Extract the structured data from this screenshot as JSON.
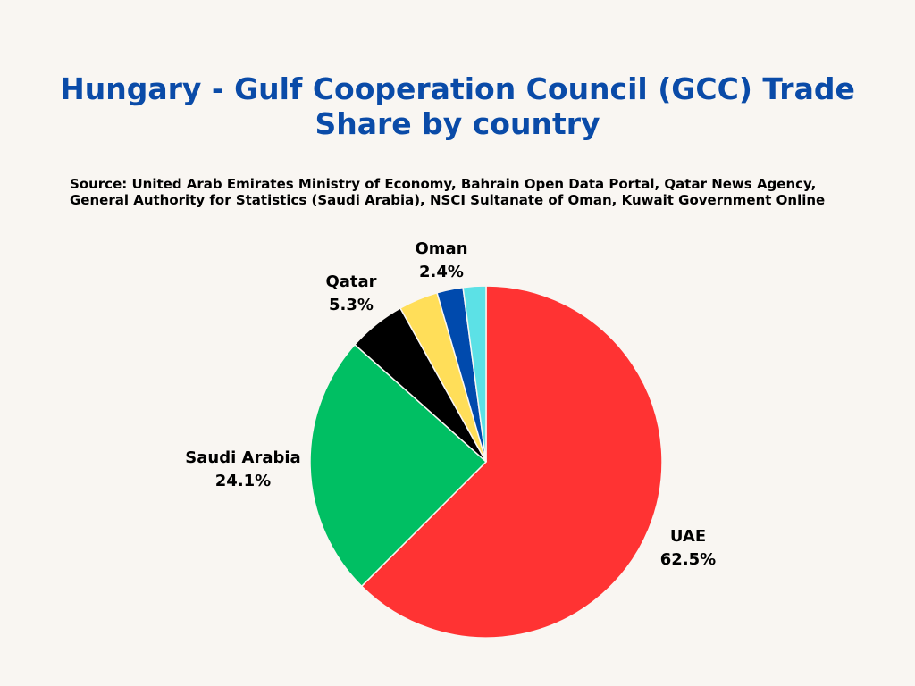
{
  "title": "Hungary - Gulf Cooperation Council (GCC) Trade Share by country",
  "source": "Source: United Arab Emirates Ministry of Economy, Bahrain Open Data Portal, Qatar News Agency, General Authority for Statistics (Saudi Arabia), NSCI Sultanate of Oman, Kuwait Government Online",
  "chart_data": {
    "type": "pie",
    "start_angle_deg": 0,
    "direction": "clockwise",
    "slices": [
      {
        "label": "UAE",
        "value": 62.5,
        "value_label": "62.5%",
        "color": "#ff3333"
      },
      {
        "label": "Saudi Arabia",
        "value": 24.1,
        "value_label": "24.1%",
        "color": "#00bf63"
      },
      {
        "label": "Qatar",
        "value": 5.3,
        "value_label": "5.3%",
        "color": "#000000"
      },
      {
        "label": "",
        "value": 3.6,
        "value_label": "",
        "color": "#ffde59"
      },
      {
        "label": "Oman",
        "value": 2.4,
        "value_label": "2.4%",
        "color": "#004aad"
      },
      {
        "label": "",
        "value": 2.1,
        "value_label": "",
        "color": "#5ce1e6"
      }
    ]
  }
}
